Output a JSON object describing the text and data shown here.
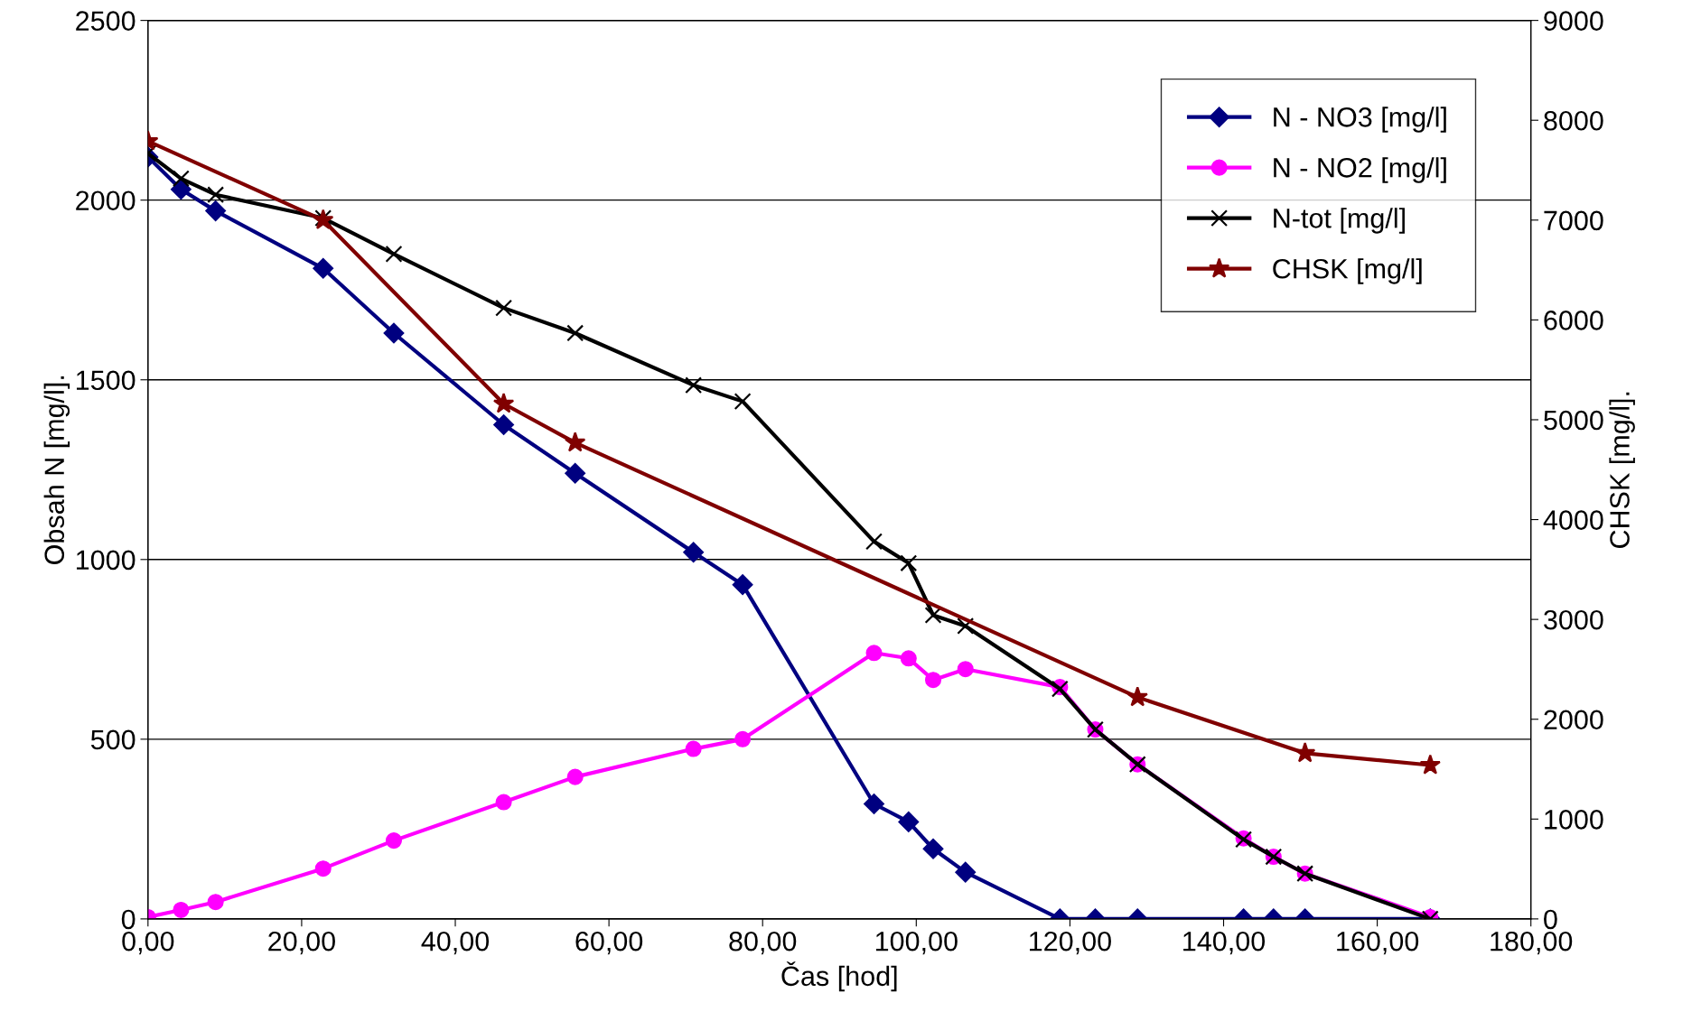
{
  "chart_data": {
    "type": "line",
    "xlabel": "Čas [hod]",
    "ylabel": "Obsah N [mg/l].",
    "y2label": "CHSK [mg/l].",
    "xlim": [
      0,
      180
    ],
    "xticks": [
      {
        "value": 0,
        "label": "0,00"
      },
      {
        "value": 20,
        "label": "20,00"
      },
      {
        "value": 40,
        "label": "40,00"
      },
      {
        "value": 60,
        "label": "60,00"
      },
      {
        "value": 80,
        "label": "80,00"
      },
      {
        "value": 100,
        "label": "100,00"
      },
      {
        "value": 120,
        "label": "120,00"
      },
      {
        "value": 140,
        "label": "140,00"
      },
      {
        "value": 160,
        "label": "160,00"
      },
      {
        "value": 180,
        "label": "180,00"
      }
    ],
    "ylim": [
      0,
      2500
    ],
    "yticks": [
      0,
      500,
      1000,
      1500,
      2000,
      2500
    ],
    "y2lim": [
      0,
      9000
    ],
    "y2ticks": [
      0,
      1000,
      2000,
      3000,
      4000,
      5000,
      6000,
      7000,
      8000,
      9000
    ],
    "grid": "y",
    "legend": "top right",
    "series": [
      {
        "name": "N - NO3 [mg/l]",
        "color": "#000080",
        "marker": "diamond",
        "x": [
          0,
          4.3,
          8.8,
          22.8,
          32.0,
          46.3,
          55.6,
          71.0,
          77.4,
          94.5,
          99.0,
          102.2,
          106.4,
          118.7,
          123.3,
          128.8,
          142.6,
          146.5,
          150.6,
          166.9
        ],
        "values": [
          2120,
          2030,
          1970,
          1810,
          1630,
          1375,
          1240,
          1020,
          930,
          320,
          270,
          195,
          130,
          0,
          0,
          0,
          0,
          0,
          0,
          0
        ]
      },
      {
        "name": "N - NO2 [mg/l]",
        "color": "#ff00ff",
        "marker": "circle",
        "x": [
          0,
          4.3,
          8.8,
          22.8,
          32.0,
          46.3,
          55.6,
          71.0,
          77.4,
          94.5,
          99.0,
          102.2,
          106.4,
          118.7,
          123.3,
          128.8,
          142.6,
          146.5,
          150.6,
          166.9
        ],
        "values": [
          5,
          25,
          47,
          140,
          218,
          325,
          395,
          473,
          500,
          740,
          725,
          665,
          695,
          645,
          527,
          430,
          224,
          173,
          126,
          5
        ]
      },
      {
        "name": "N-tot [mg/l]",
        "color": "#000000",
        "marker": "cross",
        "x": [
          0,
          4.3,
          8.8,
          22.8,
          32.0,
          46.3,
          55.6,
          71.0,
          77.4,
          94.5,
          99.0,
          102.2,
          106.4,
          118.7,
          123.3,
          128.8,
          142.6,
          146.5,
          150.6,
          166.9
        ],
        "values": [
          2130,
          2060,
          2015,
          1950,
          1850,
          1700,
          1630,
          1485,
          1440,
          1050,
          990,
          845,
          815,
          640,
          527,
          430,
          221,
          173,
          126,
          0
        ]
      },
      {
        "name": "CHSK [mg/l]",
        "color": "#800000",
        "marker": "star",
        "axis": "y2",
        "x": [
          0,
          22.8,
          46.3,
          55.6,
          128.8,
          150.6,
          166.9
        ],
        "values": [
          7790,
          7000,
          5160,
          4770,
          2220,
          1660,
          1540
        ]
      }
    ]
  }
}
